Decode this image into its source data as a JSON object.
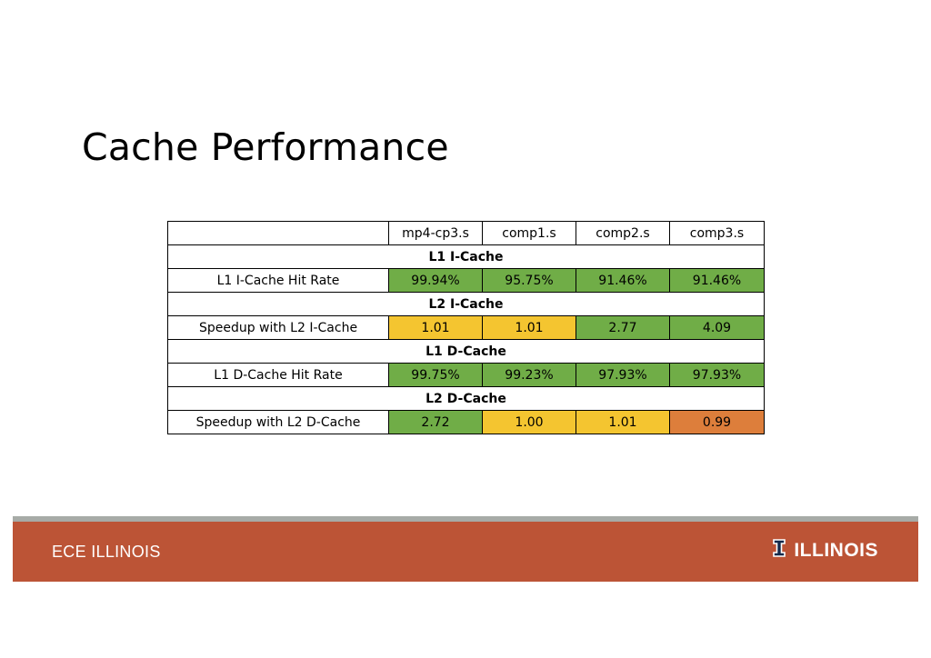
{
  "slide": {
    "title": "Cache Performance"
  },
  "table": {
    "columns": [
      "",
      "mp4-cp3.s",
      "comp1.s",
      "comp2.s",
      "comp3.s"
    ],
    "sections": [
      {
        "header": "L1 I-Cache",
        "row": {
          "label": "L1 I-Cache Hit Rate",
          "values": [
            "99.94%",
            "95.75%",
            "91.46%",
            "91.46%"
          ],
          "colors": [
            "green",
            "green",
            "green",
            "green"
          ]
        }
      },
      {
        "header": "L2 I-Cache",
        "row": {
          "label": "Speedup with L2 I-Cache",
          "values": [
            "1.01",
            "1.01",
            "2.77",
            "4.09"
          ],
          "colors": [
            "yellow",
            "yellow",
            "green",
            "green"
          ]
        }
      },
      {
        "header": "L1 D-Cache",
        "row": {
          "label": "L1 D-Cache Hit Rate",
          "values": [
            "99.75%",
            "99.23%",
            "97.93%",
            "97.93%"
          ],
          "colors": [
            "green",
            "green",
            "green",
            "green"
          ]
        }
      },
      {
        "header": "L2 D-Cache",
        "row": {
          "label": "Speedup with L2 D-Cache",
          "values": [
            "2.72",
            "1.00",
            "1.01",
            "0.99"
          ],
          "colors": [
            "green",
            "yellow",
            "yellow",
            "orange"
          ]
        }
      }
    ]
  },
  "footer": {
    "left_text": "ECE ILLINOIS",
    "right_text": "ILLINOIS",
    "logo_icon": "block-i-icon"
  },
  "colors": {
    "green": "#70ad47",
    "yellow": "#f4c530",
    "orange": "#dd7e3b",
    "footer_bg": "#bc5436",
    "footer_stripe": "#a7aba7",
    "logo_blue": "#13294b"
  }
}
